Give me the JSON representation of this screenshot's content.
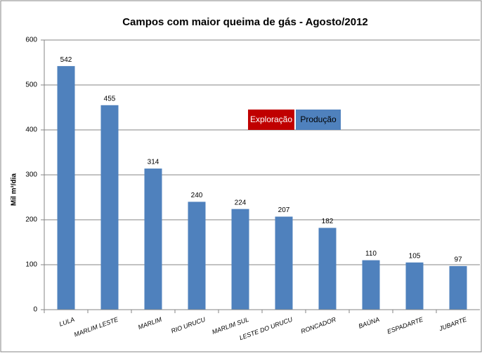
{
  "chart_data": {
    "type": "bar",
    "title": "Campos com maior queima de gás -  Agosto/2012",
    "y_label": "Mil m³/dia",
    "categories": [
      "LULA",
      "MARLIM LESTE",
      "MARLIM",
      "RIO URUCU",
      "MARLIM SUL",
      "LESTE DO URUCU",
      "RONCADOR",
      "BAÚNA",
      "ESPADARTE",
      "JUBARTE"
    ],
    "series": [
      {
        "name": "Exploração",
        "color": "#c00000",
        "values": [
          null,
          null,
          null,
          null,
          null,
          null,
          null,
          null,
          null,
          null
        ]
      },
      {
        "name": "Produção",
        "color": "#4f81bd",
        "values": [
          542,
          455,
          314,
          240,
          224,
          207,
          182,
          110,
          105,
          97
        ]
      }
    ],
    "ylim": [
      0,
      600
    ],
    "yticks": [
      0,
      100,
      200,
      300,
      400,
      500,
      600
    ],
    "grid": true
  }
}
